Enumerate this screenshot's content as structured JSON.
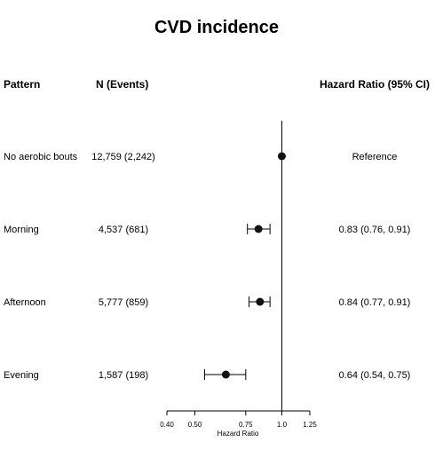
{
  "chart_data": {
    "type": "forest",
    "title": "CVD incidence",
    "columns": {
      "pattern": "Pattern",
      "n_events": "N (Events)",
      "hr_ci": "Hazard Ratio (95% CI)"
    },
    "rows": [
      {
        "pattern": "No aerobic bouts",
        "n_events": "12,759 (2,242)",
        "hr_text": "Reference",
        "hr": 1.0,
        "lower": null,
        "upper": null
      },
      {
        "pattern": "Morning",
        "n_events": "4,537 (681)",
        "hr_text": "0.83 (0.76, 0.91)",
        "hr": 0.83,
        "lower": 0.76,
        "upper": 0.91
      },
      {
        "pattern": "Afternoon",
        "n_events": "5,777 (859)",
        "hr_text": "0.84 (0.77, 0.91)",
        "hr": 0.84,
        "lower": 0.77,
        "upper": 0.91
      },
      {
        "pattern": "Evening",
        "n_events": "1,587 (198)",
        "hr_text": "0.64 (0.54, 0.75)",
        "hr": 0.64,
        "lower": 0.54,
        "upper": 0.75
      }
    ],
    "x_axis": {
      "label": "Hazard Ratio",
      "ticks": [
        0.4,
        0.5,
        0.75,
        1.0,
        1.25
      ],
      "tick_labels": [
        "0.40",
        "0.50",
        "0.75",
        "1.0",
        "1.25"
      ],
      "range": [
        0.4,
        1.25
      ],
      "scale": "log",
      "reference_line": 1.0
    }
  }
}
